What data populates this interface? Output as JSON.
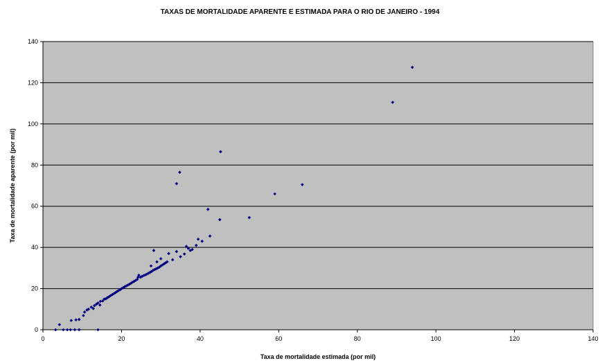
{
  "chart_data": {
    "type": "scatter",
    "title": "TAXAS DE MORTALIDADE APARENTE E ESTIMADA PARA O RIO DE JANEIRO - 1994",
    "xlabel": "Taxa de mortalidade estimada (por mil)",
    "ylabel": "Taxa de mortalidade aparente (por mil)",
    "xlim": [
      0,
      140
    ],
    "ylim": [
      0,
      140
    ],
    "x_ticks": [
      "0",
      "20",
      "40",
      "60",
      "80",
      "100",
      "120",
      "140"
    ],
    "y_ticks": [
      "0",
      "20",
      "40",
      "60",
      "80",
      "100",
      "120",
      "140"
    ],
    "grid": "horizontal",
    "legend": "none",
    "colors": {
      "plot_bg": "#c0c0c0",
      "marker": "#000080",
      "grid": "#000000"
    },
    "series": [
      {
        "points": [
          [
            3.2,
            0
          ],
          [
            4.2,
            2.5
          ],
          [
            5.2,
            0
          ],
          [
            6.2,
            0
          ],
          [
            7.0,
            0
          ],
          [
            7.2,
            4.5
          ],
          [
            8.1,
            0
          ],
          [
            8.4,
            4.8
          ],
          [
            9.2,
            5.0
          ],
          [
            9.2,
            0
          ],
          [
            10.3,
            6.9
          ],
          [
            10.6,
            8.6
          ],
          [
            11.2,
            9.6
          ],
          [
            11.6,
            10.0
          ],
          [
            12.3,
            11.0
          ],
          [
            12.8,
            10.3
          ],
          [
            13.1,
            11.7
          ],
          [
            13.6,
            12.4
          ],
          [
            14.0,
            13.0
          ],
          [
            14.0,
            0
          ],
          [
            14.5,
            12.0
          ],
          [
            14.6,
            13.8
          ],
          [
            15.2,
            14.0
          ],
          [
            15.6,
            14.9
          ],
          [
            16.0,
            15.0
          ],
          [
            16.4,
            15.6
          ],
          [
            16.8,
            16.0
          ],
          [
            17.2,
            16.6
          ],
          [
            17.6,
            17.0
          ],
          [
            18.0,
            17.5
          ],
          [
            18.4,
            18.0
          ],
          [
            18.8,
            18.5
          ],
          [
            19.2,
            19.0
          ],
          [
            19.6,
            19.4
          ],
          [
            20.0,
            20.0
          ],
          [
            20.4,
            20.4
          ],
          [
            20.8,
            20.9
          ],
          [
            21.2,
            21.3
          ],
          [
            21.6,
            21.7
          ],
          [
            22.0,
            22.1
          ],
          [
            22.4,
            22.6
          ],
          [
            22.8,
            23.1
          ],
          [
            23.2,
            23.5
          ],
          [
            23.6,
            24.0
          ],
          [
            24.0,
            24.5
          ],
          [
            24.2,
            25.5
          ],
          [
            24.4,
            26.5
          ],
          [
            24.8,
            25.5
          ],
          [
            25.2,
            25.9
          ],
          [
            25.6,
            26.3
          ],
          [
            26.0,
            26.6
          ],
          [
            26.4,
            27.0
          ],
          [
            26.8,
            27.4
          ],
          [
            27.2,
            27.8
          ],
          [
            27.6,
            28.3
          ],
          [
            28.0,
            28.8
          ],
          [
            28.4,
            29.2
          ],
          [
            28.8,
            29.6
          ],
          [
            29.2,
            30.0
          ],
          [
            29.6,
            30.4
          ],
          [
            30.0,
            31.0
          ],
          [
            30.4,
            31.5
          ],
          [
            30.8,
            32.0
          ],
          [
            31.2,
            32.5
          ],
          [
            31.6,
            33.0
          ],
          [
            27.5,
            31.0
          ],
          [
            29.0,
            33.0
          ],
          [
            30.0,
            34.5
          ],
          [
            32.0,
            37.0
          ],
          [
            34.0,
            38.0
          ],
          [
            35.0,
            35.5
          ],
          [
            36.0,
            36.8
          ],
          [
            36.5,
            40.5
          ],
          [
            37.0,
            39.5
          ],
          [
            37.5,
            38.5
          ],
          [
            38.0,
            39.0
          ],
          [
            39.0,
            41.0
          ],
          [
            39.5,
            44.0
          ],
          [
            40.5,
            43.0
          ],
          [
            42.5,
            45.5
          ],
          [
            33.0,
            34.0
          ],
          [
            28.2,
            38.5
          ],
          [
            34.0,
            71.0
          ],
          [
            34.8,
            76.5
          ],
          [
            42.0,
            58.5
          ],
          [
            45.0,
            53.5
          ],
          [
            45.2,
            86.5
          ],
          [
            52.5,
            54.5
          ],
          [
            59.0,
            66.0
          ],
          [
            66.0,
            70.5
          ],
          [
            89.0,
            110.5
          ],
          [
            94.0,
            127.5
          ]
        ]
      }
    ]
  }
}
